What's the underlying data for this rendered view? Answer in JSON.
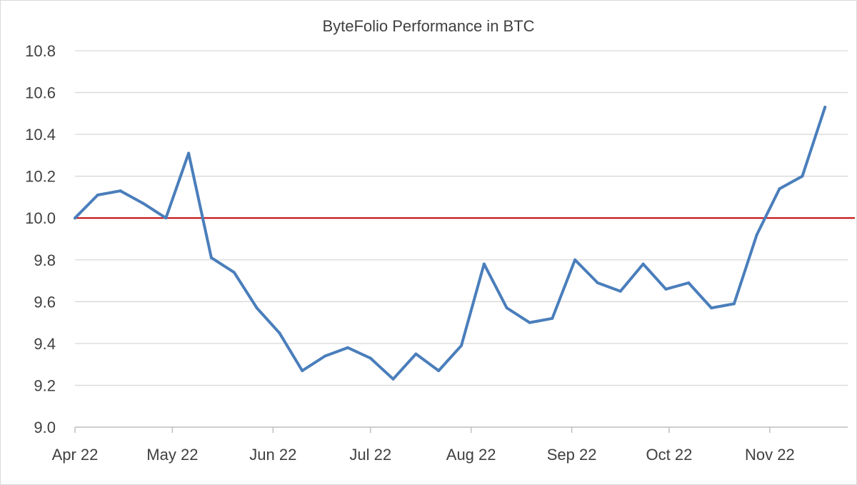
{
  "chart_data": {
    "type": "line",
    "title": "ByteFolio Performance in BTC",
    "xlabel": "",
    "ylabel": "",
    "ylim": [
      9.0,
      10.8
    ],
    "yticks": [
      "9.0",
      "9.2",
      "9.4",
      "9.6",
      "9.8",
      "10.0",
      "10.2",
      "10.4",
      "10.6",
      "10.8"
    ],
    "xlim": [
      "2022-04-01",
      "2022-11-25"
    ],
    "xticks": [
      {
        "date": "2022-04-01",
        "label": "Apr 22"
      },
      {
        "date": "2022-05-01",
        "label": "May 22"
      },
      {
        "date": "2022-06-01",
        "label": "Jun 22"
      },
      {
        "date": "2022-07-01",
        "label": "Jul 22"
      },
      {
        "date": "2022-08-01",
        "label": "Aug 22"
      },
      {
        "date": "2022-09-01",
        "label": "Sep 22"
      },
      {
        "date": "2022-10-01",
        "label": "Oct 22"
      },
      {
        "date": "2022-11-01",
        "label": "Nov 22"
      }
    ],
    "grid": "horizontal",
    "reference_line": {
      "y": 10.0,
      "color": "#c00000"
    },
    "series": [
      {
        "color": "#4a7ebb",
        "points": [
          {
            "x": "2022-04-01",
            "y": 10.0
          },
          {
            "x": "2022-04-08",
            "y": 10.11
          },
          {
            "x": "2022-04-15",
            "y": 10.13
          },
          {
            "x": "2022-04-22",
            "y": 10.07
          },
          {
            "x": "2022-04-29",
            "y": 10.0
          },
          {
            "x": "2022-05-06",
            "y": 10.31
          },
          {
            "x": "2022-05-13",
            "y": 9.81
          },
          {
            "x": "2022-05-20",
            "y": 9.74
          },
          {
            "x": "2022-05-27",
            "y": 9.57
          },
          {
            "x": "2022-06-03",
            "y": 9.45
          },
          {
            "x": "2022-06-10",
            "y": 9.27
          },
          {
            "x": "2022-06-17",
            "y": 9.34
          },
          {
            "x": "2022-06-24",
            "y": 9.38
          },
          {
            "x": "2022-07-01",
            "y": 9.33
          },
          {
            "x": "2022-07-08",
            "y": 9.23
          },
          {
            "x": "2022-07-15",
            "y": 9.35
          },
          {
            "x": "2022-07-22",
            "y": 9.27
          },
          {
            "x": "2022-07-29",
            "y": 9.39
          },
          {
            "x": "2022-08-05",
            "y": 9.78
          },
          {
            "x": "2022-08-12",
            "y": 9.57
          },
          {
            "x": "2022-08-19",
            "y": 9.5
          },
          {
            "x": "2022-08-26",
            "y": 9.52
          },
          {
            "x": "2022-09-02",
            "y": 9.8
          },
          {
            "x": "2022-09-09",
            "y": 9.69
          },
          {
            "x": "2022-09-16",
            "y": 9.65
          },
          {
            "x": "2022-09-23",
            "y": 9.78
          },
          {
            "x": "2022-09-30",
            "y": 9.66
          },
          {
            "x": "2022-10-07",
            "y": 9.69
          },
          {
            "x": "2022-10-14",
            "y": 9.57
          },
          {
            "x": "2022-10-21",
            "y": 9.59
          },
          {
            "x": "2022-10-28",
            "y": 9.92
          },
          {
            "x": "2022-11-04",
            "y": 10.14
          },
          {
            "x": "2022-11-11",
            "y": 10.2
          },
          {
            "x": "2022-11-18",
            "y": 10.53
          }
        ]
      }
    ]
  }
}
